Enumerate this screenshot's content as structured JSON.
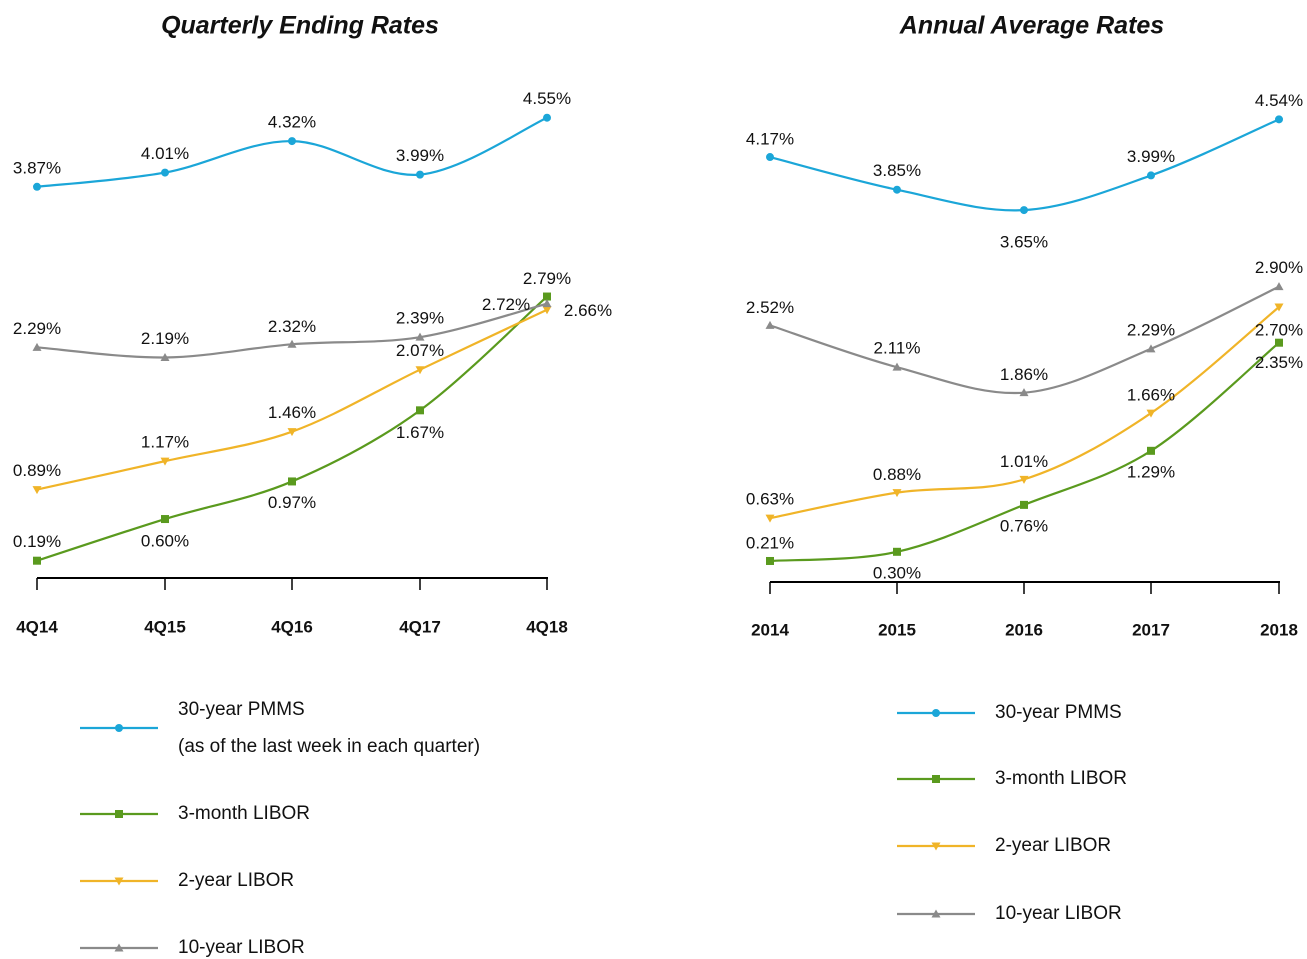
{
  "chart_data": [
    {
      "type": "line",
      "title": "Quarterly Ending Rates",
      "categories": [
        "4Q14",
        "4Q15",
        "4Q16",
        "4Q17",
        "4Q18"
      ],
      "legend_note": "(as of the last week in each quarter)",
      "series": [
        {
          "name": "30-year PMMS",
          "color": "#1ba6d8",
          "marker": "circle",
          "values": [
            3.87,
            4.01,
            4.32,
            3.99,
            4.55
          ],
          "value_labels": [
            "3.87%",
            "4.01%",
            "4.32%",
            "3.99%",
            "4.55%"
          ]
        },
        {
          "name": "3-month LIBOR",
          "color": "#5a9a1e",
          "marker": "square",
          "values": [
            0.19,
            0.6,
            0.97,
            1.67,
            2.79
          ],
          "value_labels": [
            "0.19%",
            "0.60%",
            "0.97%",
            "1.67%",
            "2.79%"
          ]
        },
        {
          "name": "2-year LIBOR",
          "color": "#f0b428",
          "marker": "triangle-down",
          "values": [
            0.89,
            1.17,
            1.46,
            2.07,
            2.66
          ],
          "value_labels": [
            "0.89%",
            "1.17%",
            "1.46%",
            "2.07%",
            "2.66%"
          ]
        },
        {
          "name": "10-year LIBOR",
          "color": "#8a8a8a",
          "marker": "triangle-up",
          "values": [
            2.29,
            2.19,
            2.32,
            2.39,
            2.72
          ],
          "value_labels": [
            "2.29%",
            "2.19%",
            "2.32%",
            "2.39%",
            "2.72%"
          ]
        }
      ]
    },
    {
      "type": "line",
      "title": "Annual Average Rates",
      "categories": [
        "2014",
        "2015",
        "2016",
        "2017",
        "2018"
      ],
      "series": [
        {
          "name": "30-year PMMS",
          "color": "#1ba6d8",
          "marker": "circle",
          "values": [
            4.17,
            3.85,
            3.65,
            3.99,
            4.54
          ],
          "value_labels": [
            "4.17%",
            "3.85%",
            "3.65%",
            "3.99%",
            "4.54%"
          ]
        },
        {
          "name": "3-month LIBOR",
          "color": "#5a9a1e",
          "marker": "square",
          "values": [
            0.21,
            0.3,
            0.76,
            1.29,
            2.35
          ],
          "value_labels": [
            "0.21%",
            "0.30%",
            "0.76%",
            "1.29%",
            "2.35%"
          ]
        },
        {
          "name": "2-year LIBOR",
          "color": "#f0b428",
          "marker": "triangle-down",
          "values": [
            0.63,
            0.88,
            1.01,
            1.66,
            2.7
          ],
          "value_labels": [
            "0.63%",
            "0.88%",
            "1.01%",
            "1.66%",
            "2.70%"
          ]
        },
        {
          "name": "10-year LIBOR",
          "color": "#8a8a8a",
          "marker": "triangle-up",
          "values": [
            2.52,
            2.11,
            1.86,
            2.29,
            2.9
          ],
          "value_labels": [
            "2.52%",
            "2.11%",
            "1.86%",
            "2.29%",
            "2.90%"
          ]
        }
      ]
    }
  ]
}
